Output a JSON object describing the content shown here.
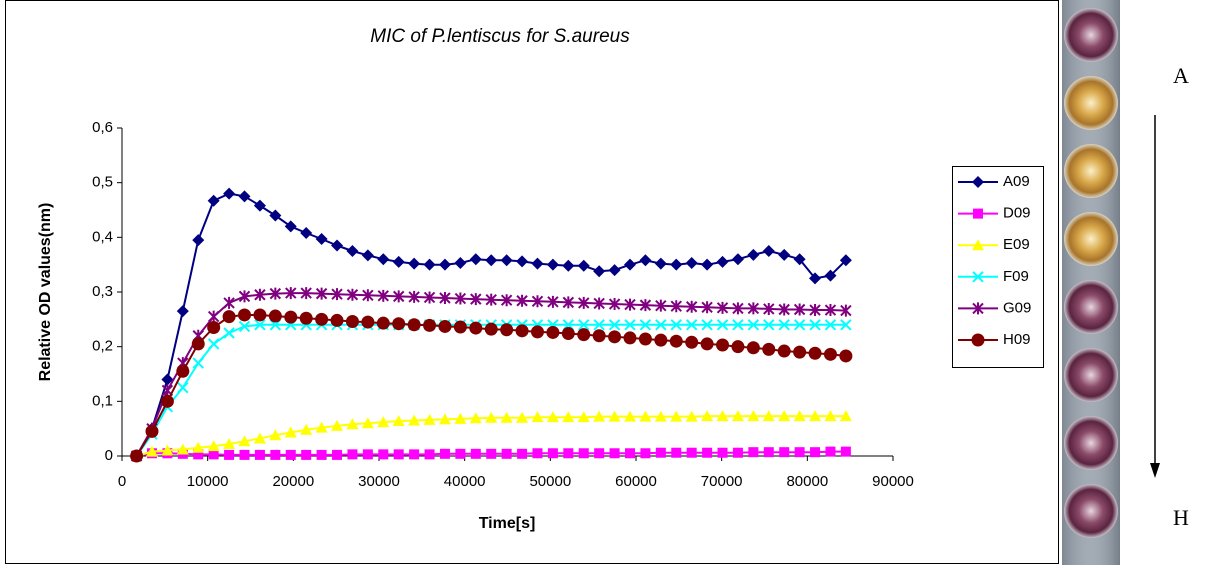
{
  "chart_data": {
    "type": "line",
    "title": "MIC of P.lentiscus for S.aureus",
    "xlabel": "Time[s]",
    "ylabel": "Relative OD values(nm)",
    "x": [
      1700,
      3500,
      5300,
      7100,
      8900,
      10700,
      12500,
      14300,
      16100,
      17900,
      19700,
      21500,
      23300,
      25100,
      26900,
      28700,
      30500,
      32300,
      34100,
      35900,
      37700,
      39500,
      41300,
      43100,
      44900,
      46700,
      48500,
      50300,
      52100,
      53900,
      55700,
      57500,
      59300,
      61100,
      62900,
      64700,
      66500,
      68300,
      70100,
      71900,
      73700,
      75500,
      77300,
      79100,
      80900,
      82700,
      84500
    ],
    "xlim": [
      0,
      90000
    ],
    "xticks": [
      0,
      10000,
      20000,
      30000,
      40000,
      50000,
      60000,
      70000,
      80000,
      90000
    ],
    "ylim": [
      0,
      0.6
    ],
    "yticks": [
      0,
      {
        "value": 0.1,
        "label": "0,1"
      },
      {
        "value": 0.2,
        "label": "0,2"
      },
      {
        "value": 0.3,
        "label": "0,3"
      },
      {
        "value": 0.4,
        "label": "0,4"
      },
      {
        "value": 0.5,
        "label": "0,5"
      },
      {
        "value": 0.6,
        "label": "0,6"
      }
    ],
    "grid": false,
    "legend": "right",
    "series": [
      {
        "name": "A09",
        "color": "#000080",
        "marker": "diamond",
        "values": [
          0,
          0.05,
          0.14,
          0.265,
          0.395,
          0.467,
          0.48,
          0.475,
          0.458,
          0.44,
          0.42,
          0.408,
          0.397,
          0.385,
          0.375,
          0.367,
          0.36,
          0.355,
          0.352,
          0.35,
          0.35,
          0.353,
          0.36,
          0.358,
          0.358,
          0.356,
          0.352,
          0.35,
          0.348,
          0.348,
          0.338,
          0.34,
          0.35,
          0.358,
          0.352,
          0.35,
          0.353,
          0.35,
          0.355,
          0.36,
          0.368,
          0.375,
          0.368,
          0.36,
          0.325,
          0.33,
          0.358
        ]
      },
      {
        "name": "D09",
        "color": "#ff00ff",
        "marker": "square",
        "values": [
          0,
          0.005,
          0.005,
          0.004,
          0.003,
          0.003,
          0.002,
          0.002,
          0.002,
          0.002,
          0.002,
          0.002,
          0.002,
          0.002,
          0.003,
          0.003,
          0.003,
          0.003,
          0.003,
          0.003,
          0.004,
          0.004,
          0.004,
          0.004,
          0.004,
          0.004,
          0.005,
          0.005,
          0.005,
          0.005,
          0.005,
          0.005,
          0.005,
          0.005,
          0.006,
          0.006,
          0.006,
          0.006,
          0.006,
          0.006,
          0.007,
          0.007,
          0.007,
          0.007,
          0.007,
          0.008,
          0.008
        ]
      },
      {
        "name": "E09",
        "color": "#ffff00",
        "marker": "triangle",
        "values": [
          0,
          0.008,
          0.01,
          0.012,
          0.015,
          0.018,
          0.022,
          0.027,
          0.032,
          0.038,
          0.043,
          0.048,
          0.052,
          0.055,
          0.058,
          0.06,
          0.062,
          0.064,
          0.065,
          0.066,
          0.067,
          0.068,
          0.069,
          0.07,
          0.07,
          0.07,
          0.071,
          0.071,
          0.071,
          0.071,
          0.072,
          0.072,
          0.072,
          0.072,
          0.072,
          0.072,
          0.072,
          0.073,
          0.073,
          0.073,
          0.073,
          0.073,
          0.073,
          0.073,
          0.073,
          0.073,
          0.073
        ]
      },
      {
        "name": "F09",
        "color": "#00ffff",
        "marker": "x",
        "values": [
          0,
          0.04,
          0.09,
          0.125,
          0.17,
          0.205,
          0.225,
          0.237,
          0.24,
          0.24,
          0.24,
          0.24,
          0.24,
          0.24,
          0.24,
          0.24,
          0.24,
          0.24,
          0.24,
          0.24,
          0.24,
          0.24,
          0.24,
          0.24,
          0.24,
          0.24,
          0.24,
          0.24,
          0.24,
          0.24,
          0.24,
          0.24,
          0.24,
          0.24,
          0.24,
          0.24,
          0.24,
          0.24,
          0.24,
          0.24,
          0.24,
          0.24,
          0.24,
          0.24,
          0.24,
          0.24,
          0.24
        ]
      },
      {
        "name": "G09",
        "color": "#800080",
        "marker": "star",
        "values": [
          0,
          0.05,
          0.12,
          0.17,
          0.22,
          0.255,
          0.28,
          0.292,
          0.295,
          0.297,
          0.298,
          0.298,
          0.297,
          0.296,
          0.295,
          0.294,
          0.293,
          0.292,
          0.291,
          0.29,
          0.289,
          0.288,
          0.287,
          0.286,
          0.285,
          0.284,
          0.283,
          0.282,
          0.281,
          0.28,
          0.279,
          0.278,
          0.277,
          0.276,
          0.275,
          0.274,
          0.273,
          0.272,
          0.271,
          0.27,
          0.27,
          0.269,
          0.268,
          0.268,
          0.267,
          0.267,
          0.266
        ]
      },
      {
        "name": "H09",
        "color": "#800000",
        "marker": "circle",
        "values": [
          0,
          0.045,
          0.1,
          0.155,
          0.205,
          0.235,
          0.255,
          0.258,
          0.258,
          0.256,
          0.254,
          0.252,
          0.25,
          0.248,
          0.246,
          0.245,
          0.243,
          0.242,
          0.24,
          0.239,
          0.237,
          0.236,
          0.234,
          0.232,
          0.231,
          0.229,
          0.227,
          0.226,
          0.224,
          0.222,
          0.22,
          0.218,
          0.216,
          0.214,
          0.212,
          0.21,
          0.208,
          0.205,
          0.203,
          0.2,
          0.198,
          0.195,
          0.192,
          0.19,
          0.188,
          0.186,
          0.183
        ]
      }
    ]
  },
  "photo": {
    "top_label": "A",
    "bottom_label": "H"
  }
}
